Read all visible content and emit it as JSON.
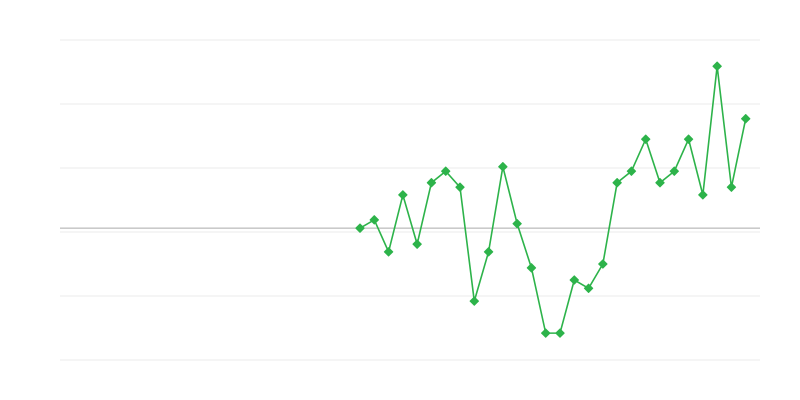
{
  "chart_data": {
    "type": "line",
    "title": "",
    "xlabel": "",
    "ylabel": "",
    "xlim": [
      1,
      50
    ],
    "ylim": [
      -2,
      3
    ],
    "grid": true,
    "grid_y_values": [
      -2,
      -1,
      0,
      1,
      2,
      3
    ],
    "reference_line_y": 0.06,
    "legend": "none",
    "colors": {
      "series": "#2db34a",
      "grid": "#ebebeb",
      "reference": "#aaaaaa"
    },
    "marker": "diamond",
    "series": [
      {
        "x": [
          22,
          23,
          24,
          25,
          26,
          27,
          28,
          29,
          30,
          31,
          32,
          33,
          34,
          35,
          36,
          37,
          38,
          39,
          40,
          41,
          42,
          43,
          44,
          45,
          46,
          47,
          48,
          49
        ],
        "values": [
          0.06,
          0.19,
          -0.31,
          0.58,
          -0.19,
          0.77,
          0.95,
          0.7,
          -1.08,
          -0.31,
          1.02,
          0.13,
          -0.56,
          -1.58,
          -1.58,
          -0.75,
          -0.88,
          -0.5,
          0.77,
          0.95,
          1.45,
          0.77,
          0.95,
          1.45,
          0.58,
          2.59,
          0.7,
          1.77
        ]
      }
    ]
  }
}
